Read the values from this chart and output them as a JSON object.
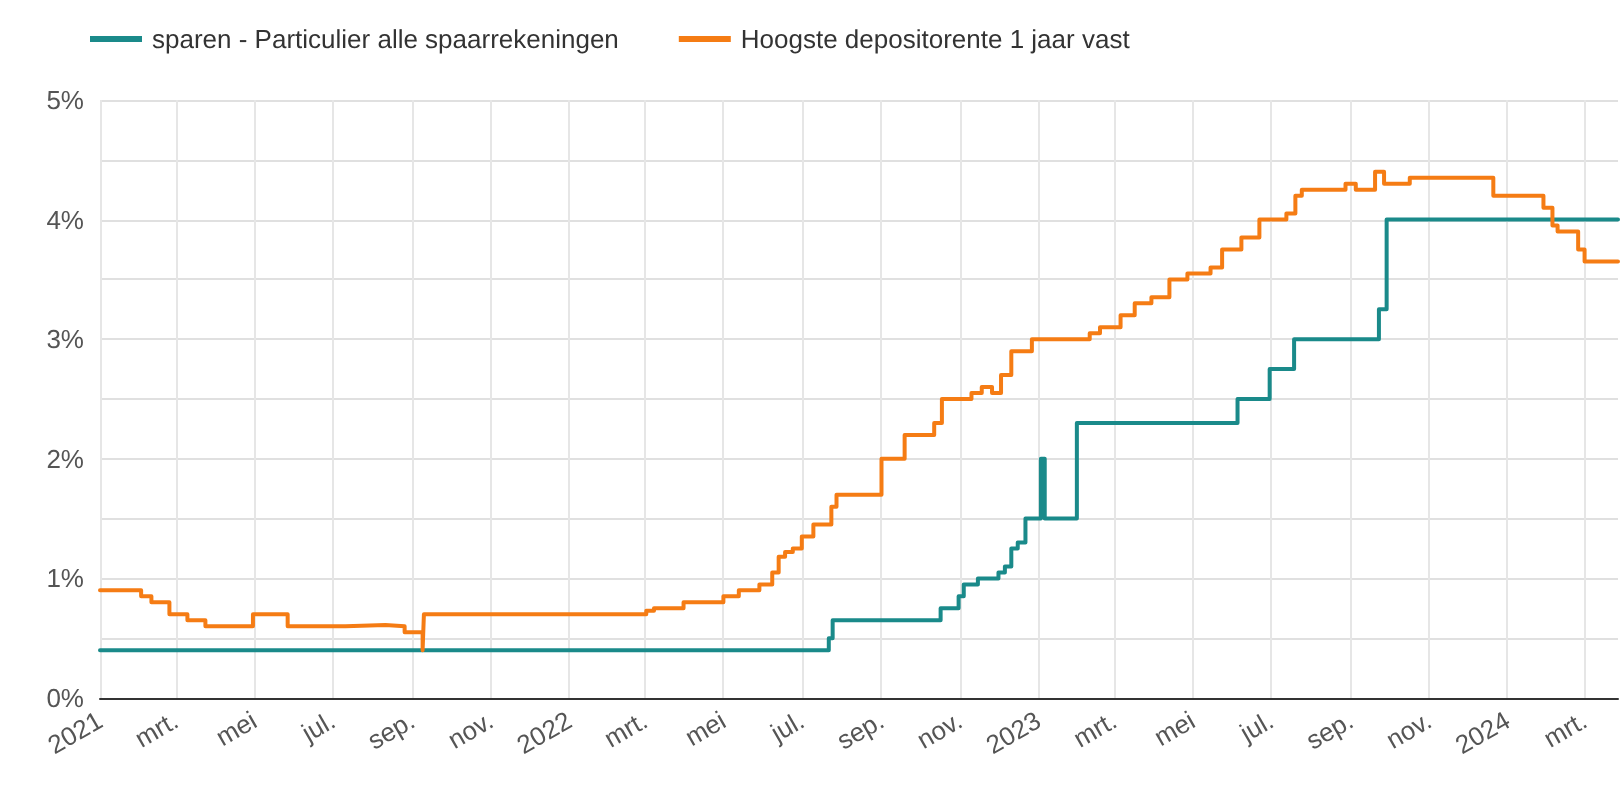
{
  "chart_data": {
    "type": "step",
    "xlim": [
      "2021-01-01",
      "2024-03-27"
    ],
    "xticks": [
      {
        "value": "2021-01-01",
        "label": "2021"
      },
      {
        "value": "2021-03-01",
        "label": "mrt."
      },
      {
        "value": "2021-05-01",
        "label": "mei"
      },
      {
        "value": "2021-07-01",
        "label": "jul."
      },
      {
        "value": "2021-09-01",
        "label": "sep."
      },
      {
        "value": "2021-11-01",
        "label": "nov."
      },
      {
        "value": "2022-01-01",
        "label": "2022"
      },
      {
        "value": "2022-03-01",
        "label": "mrt."
      },
      {
        "value": "2022-05-01",
        "label": "mei"
      },
      {
        "value": "2022-07-01",
        "label": "jul."
      },
      {
        "value": "2022-09-01",
        "label": "sep."
      },
      {
        "value": "2022-11-01",
        "label": "nov."
      },
      {
        "value": "2023-01-01",
        "label": "2023"
      },
      {
        "value": "2023-03-01",
        "label": "mrt."
      },
      {
        "value": "2023-05-01",
        "label": "mei"
      },
      {
        "value": "2023-07-01",
        "label": "jul."
      },
      {
        "value": "2023-09-01",
        "label": "sep."
      },
      {
        "value": "2023-11-01",
        "label": "nov."
      },
      {
        "value": "2024-01-01",
        "label": "2024"
      },
      {
        "value": "2024-03-01",
        "label": "mrt."
      }
    ],
    "ylim": [
      0,
      5
    ],
    "yticks": [
      {
        "value": 0,
        "label": "0%"
      },
      {
        "value": 0.5,
        "label": null
      },
      {
        "value": 1,
        "label": "1%"
      },
      {
        "value": 1.5,
        "label": null
      },
      {
        "value": 2,
        "label": "2%"
      },
      {
        "value": 2.5,
        "label": null
      },
      {
        "value": 3,
        "label": "3%"
      },
      {
        "value": 3.5,
        "label": null
      },
      {
        "value": 4,
        "label": "4%"
      },
      {
        "value": 4.5,
        "label": null
      },
      {
        "value": 5,
        "label": "5%"
      }
    ],
    "grid": true,
    "legend": "top left",
    "marker": "none",
    "line_style": "solid",
    "series": [
      {
        "name": "sparen - Particulier alle spaarrekeningen",
        "color": "#1a8a8a",
        "x": [
          "2021-01-01",
          "2022-07-22",
          "2022-07-25",
          "2022-10-17",
          "2022-10-31",
          "2022-11-04",
          "2022-11-15",
          "2022-12-01",
          "2022-12-06",
          "2022-12-11",
          "2022-12-16",
          "2022-12-22",
          "2023-01-03",
          "2023-01-06",
          "2023-01-31",
          "2023-06-05",
          "2023-06-30",
          "2023-07-19",
          "2023-09-23",
          "2023-09-29",
          "2024-03-27"
        ],
        "values": [
          0.4,
          0.5,
          0.65,
          0.75,
          0.85,
          0.95,
          1.0,
          1.05,
          1.1,
          1.25,
          1.3,
          1.5,
          2.0,
          1.5,
          2.3,
          2.5,
          2.75,
          3.0,
          3.25,
          4.0,
          4.0
        ]
      },
      {
        "name": "Hoogste depositorente 1 jaar vast",
        "color": "#f57c14",
        "x": [
          "2021-01-01",
          "2021-02-02",
          "2021-02-10",
          "2021-02-24",
          "2021-03-10",
          "2021-03-24",
          "2021-04-30",
          "2021-05-27",
          "2021-07-11",
          "2021-08-11",
          "2021-08-26",
          "2021-09-09",
          "2021-09-10",
          "2022-03-02",
          "2022-03-08",
          "2022-03-31",
          "2022-05-01",
          "2022-05-13",
          "2022-05-29",
          "2022-06-08",
          "2022-06-13",
          "2022-06-18",
          "2022-06-24",
          "2022-07-01",
          "2022-07-10",
          "2022-07-24",
          "2022-07-28",
          "2022-09-01",
          "2022-09-19",
          "2022-10-12",
          "2022-10-18",
          "2022-11-10",
          "2022-11-18",
          "2022-11-26",
          "2022-12-03",
          "2022-12-11",
          "2022-12-27",
          "2023-02-10",
          "2023-02-18",
          "2023-03-06",
          "2023-03-17",
          "2023-03-30",
          "2023-04-13",
          "2023-04-27",
          "2023-05-15",
          "2023-05-24",
          "2023-06-08",
          "2023-06-22",
          "2023-07-13",
          "2023-07-20",
          "2023-07-25",
          "2023-08-28",
          "2023-09-05",
          "2023-09-20",
          "2023-09-27",
          "2023-10-17",
          "2023-12-21",
          "2024-01-29",
          "2024-02-05",
          "2024-02-09",
          "2024-02-25",
          "2024-03-01",
          "2024-03-27"
        ],
        "values": [
          0.9,
          0.85,
          0.8,
          0.7,
          0.65,
          0.6,
          0.7,
          0.6,
          0.61,
          0.6,
          0.55,
          0.4,
          0.7,
          0.73,
          0.75,
          0.8,
          0.85,
          0.9,
          0.95,
          1.05,
          1.18,
          1.22,
          1.25,
          1.35,
          1.45,
          1.6,
          1.7,
          2.0,
          2.2,
          2.3,
          2.5,
          2.55,
          2.6,
          2.55,
          2.7,
          2.9,
          3.0,
          3.05,
          3.1,
          3.2,
          3.3,
          3.35,
          3.5,
          3.55,
          3.6,
          3.75,
          3.85,
          4.0,
          4.05,
          4.2,
          4.25,
          4.3,
          4.25,
          4.4,
          4.3,
          4.35,
          4.2,
          4.1,
          3.95,
          3.9,
          3.75,
          3.65,
          3.65
        ]
      }
    ]
  }
}
